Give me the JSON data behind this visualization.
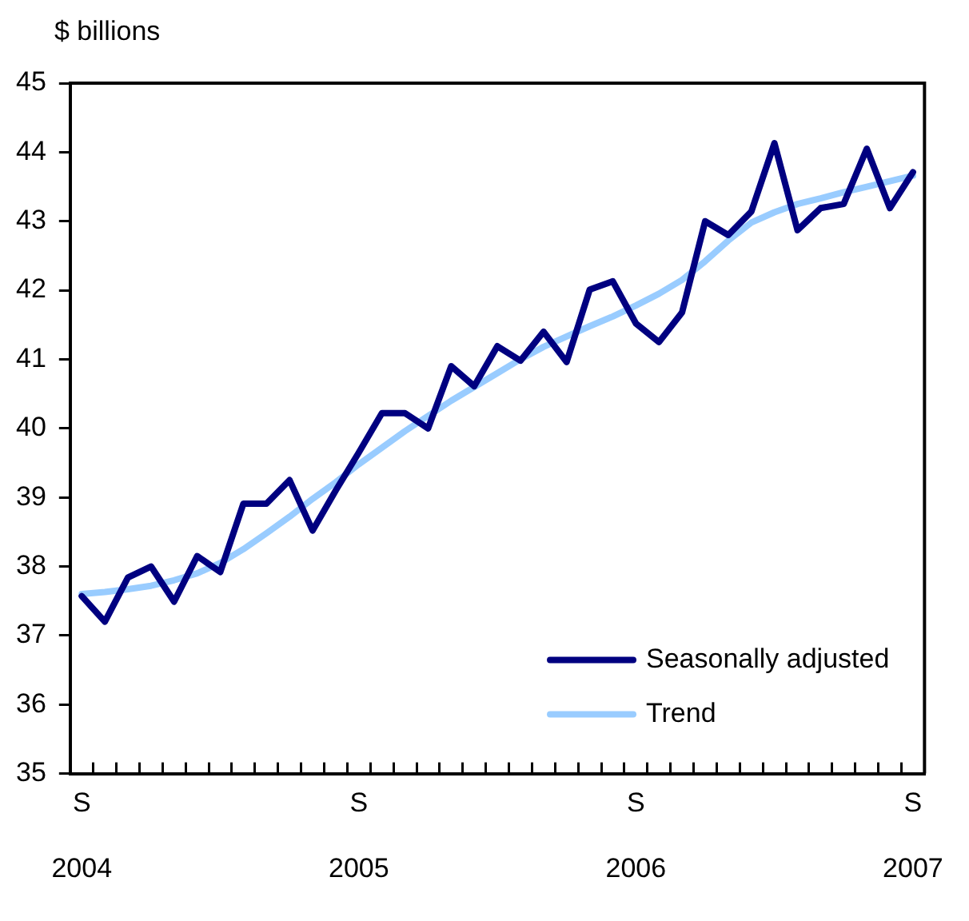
{
  "chart_data": {
    "type": "line",
    "ylabel": "$ billions",
    "categories": [
      "S 2004",
      null,
      null,
      null,
      null,
      null,
      null,
      null,
      null,
      null,
      null,
      null,
      "S 2005",
      null,
      null,
      null,
      null,
      null,
      null,
      null,
      null,
      null,
      null,
      null,
      "S 2006",
      null,
      null,
      null,
      null,
      null,
      null,
      null,
      null,
      null,
      null,
      null,
      "S 2007"
    ],
    "series": [
      {
        "name": "Seasonally adjusted",
        "color": "#000080",
        "values": [
          37.57,
          37.2,
          37.84,
          38.0,
          37.49,
          38.15,
          37.92,
          38.91,
          38.91,
          39.25,
          38.52,
          39.1,
          39.65,
          40.22,
          40.22,
          40.0,
          40.9,
          40.61,
          41.19,
          40.98,
          41.4,
          40.96,
          42.01,
          42.13,
          41.52,
          41.25,
          41.68,
          43.0,
          42.8,
          43.14,
          44.13,
          42.87,
          43.19,
          43.25,
          44.05,
          43.19,
          43.71
        ]
      },
      {
        "name": "Trend",
        "color": "#99ccff",
        "values": [
          37.6,
          37.63,
          37.67,
          37.72,
          37.8,
          37.9,
          38.05,
          38.25,
          38.48,
          38.72,
          38.98,
          39.22,
          39.48,
          39.72,
          39.96,
          40.18,
          40.4,
          40.6,
          40.8,
          41.0,
          41.18,
          41.33,
          41.48,
          41.62,
          41.78,
          41.95,
          42.15,
          42.42,
          42.72,
          42.98,
          43.13,
          43.25,
          43.33,
          43.42,
          43.5,
          43.58,
          43.66
        ]
      }
    ],
    "ylim": [
      35,
      45
    ],
    "yticks": [
      35,
      36,
      37,
      38,
      39,
      40,
      41,
      42,
      43,
      44,
      45
    ],
    "grid": false,
    "legend": "bottom right",
    "marker": "none",
    "line_style": "solid"
  }
}
